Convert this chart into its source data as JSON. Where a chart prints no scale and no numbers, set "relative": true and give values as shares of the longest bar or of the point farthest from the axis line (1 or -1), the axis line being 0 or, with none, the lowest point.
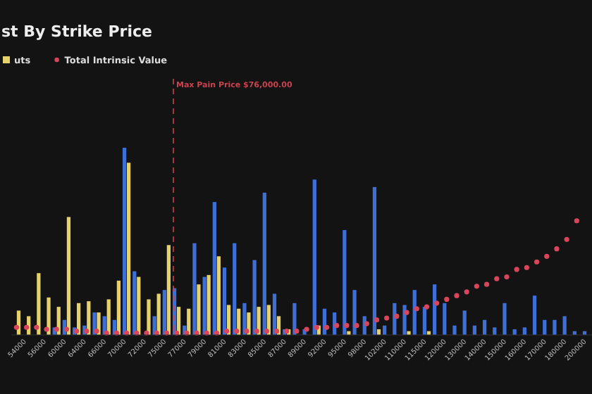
{
  "chart_data": {
    "type": "bar",
    "title": "st By Strike Price",
    "relative": true,
    "legend": "top left",
    "marker": "circle",
    "categories": [
      null,
      "54000",
      null,
      "56000",
      null,
      "60000",
      null,
      "64000",
      null,
      "66000",
      null,
      "70000",
      null,
      "72000",
      null,
      "75000",
      null,
      "77000",
      null,
      "79000",
      null,
      "81000",
      null,
      "83000",
      null,
      "85000",
      null,
      "87000",
      null,
      "89000",
      null,
      "92000",
      null,
      "95000",
      null,
      "98000",
      null,
      "102000",
      null,
      "110000",
      null,
      "115000",
      null,
      "120000",
      null,
      "130000",
      null,
      "140000",
      null,
      "150000",
      null,
      "160000",
      null,
      "170000",
      null,
      "180000",
      null,
      "200000"
    ],
    "series": [
      {
        "color": "#3d6fd6",
        "values": [
          0,
          0,
          0,
          0,
          0.04,
          0.08,
          0.04,
          0.05,
          0.12,
          0.1,
          0.08,
          1.0,
          0.34,
          0,
          0.1,
          0.24,
          0.25,
          0.05,
          0.49,
          0.31,
          0.71,
          0.36,
          0.49,
          0.17,
          0.4,
          0.76,
          0.22,
          0.03,
          0.17,
          0.03,
          0.83,
          0.14,
          0.12,
          0.56,
          0.24,
          0.1,
          0.79,
          0.05,
          0.17,
          0.16,
          0.24,
          0.15,
          0.27,
          0.17,
          0.05,
          0.13,
          0.05,
          0.08,
          0.04,
          0.17,
          0.03,
          0.04,
          0.21,
          0.08,
          0.08,
          0.1,
          0.02,
          0.02
        ]
      },
      {
        "name": "uts",
        "color": "#e6d26c",
        "values": [
          0.13,
          0.1,
          0.33,
          0.2,
          0.15,
          0.63,
          0.17,
          0.18,
          0.12,
          0.19,
          0.29,
          0.92,
          0.31,
          0.19,
          0.22,
          0.48,
          0.15,
          0.14,
          0.27,
          0.32,
          0.42,
          0.16,
          0.14,
          0.12,
          0.15,
          0.16,
          0.1,
          0.03,
          0,
          0,
          0.05,
          0,
          0,
          0.02,
          0,
          0,
          0.03,
          0,
          0,
          0.02,
          0,
          0.02,
          0,
          0,
          0,
          0,
          0,
          0,
          0,
          0,
          0,
          0,
          0,
          0,
          0,
          0,
          0,
          0
        ]
      },
      {
        "type": "scatter",
        "name": "Total Intrinsic Value",
        "color": "#d9455a",
        "values": [
          0.04,
          0.04,
          0.04,
          0.03,
          0.03,
          0.03,
          0.02,
          0.02,
          0.02,
          0.01,
          0.01,
          0.01,
          0.01,
          0.01,
          0.01,
          0.01,
          0.01,
          0.01,
          0.01,
          0.01,
          0.01,
          0.02,
          0.02,
          0.02,
          0.02,
          0.02,
          0.02,
          0.02,
          0.02,
          0.03,
          0.04,
          0.04,
          0.05,
          0.05,
          0.05,
          0.06,
          0.08,
          0.09,
          0.1,
          0.12,
          0.14,
          0.15,
          0.17,
          0.19,
          0.21,
          0.23,
          0.26,
          0.27,
          0.3,
          0.31,
          0.35,
          0.36,
          0.39,
          0.42,
          0.46,
          0.51,
          0.61,
          null
        ]
      }
    ],
    "annotations": [
      "Max Pain Price $76,000.00"
    ]
  }
}
